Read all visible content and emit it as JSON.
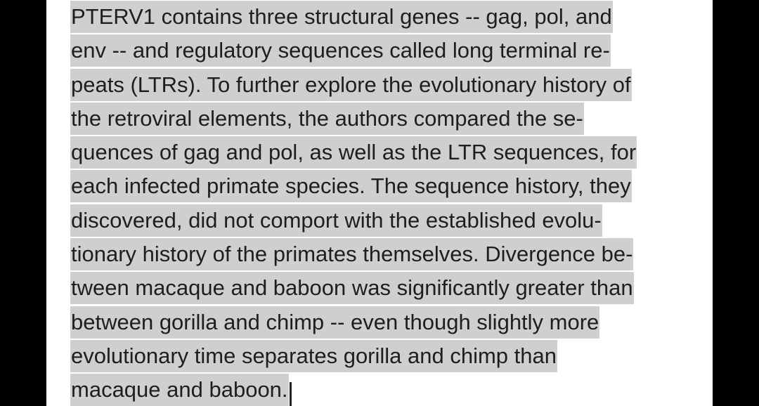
{
  "paragraph": {
    "lines": [
      "PTERV1 contains three structural genes -- gag, pol, and",
      "env -- and regulatory sequences called long terminal re-",
      "peats (LTRs). To further explore the evolutionary history of",
      "the retroviral elements, the authors compared the se-",
      "quences of gag and pol, as well as the LTR sequences, for",
      "each infected primate species. The sequence history, they",
      "discovered, did not comport with the established evolu-",
      "tionary history of the primates themselves. Divergence be-",
      "tween macaque and baboon was significantly greater than",
      "between gorilla and chimp -- even though slightly more",
      "evolutionary time separates gorilla and chimp than",
      "macaque and baboon."
    ]
  },
  "colors": {
    "highlight": "#cfcfcf",
    "text": "#1e1e1e",
    "page": "#ffffff",
    "margin": "#000000"
  }
}
